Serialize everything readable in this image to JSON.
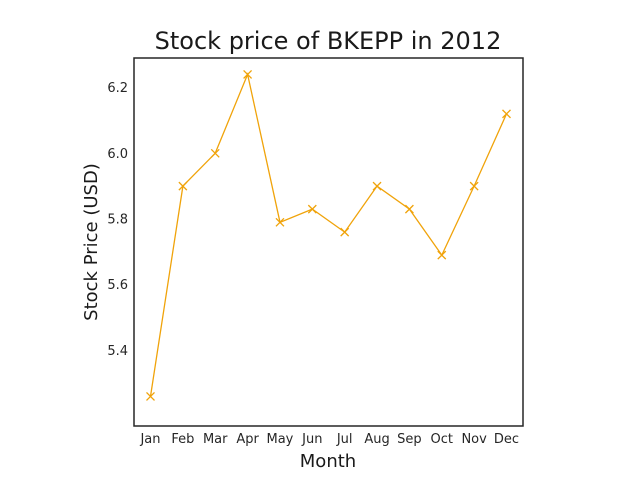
{
  "chart_data": {
    "type": "line",
    "title": "Stock price of BKEPP in 2012",
    "xlabel": "Month",
    "ylabel": "Stock Price (USD)",
    "categories": [
      "Jan",
      "Feb",
      "Mar",
      "Apr",
      "May",
      "Jun",
      "Jul",
      "Aug",
      "Sep",
      "Oct",
      "Nov",
      "Dec"
    ],
    "series": [
      {
        "values": [
          5.26,
          5.9,
          6.0,
          6.24,
          5.79,
          5.83,
          5.76,
          5.9,
          5.83,
          5.69,
          5.9,
          6.12
        ],
        "color": "#f0a30a",
        "marker": "x"
      }
    ],
    "ylim": [
      5.17,
      6.29
    ],
    "yticks": [
      "5.4",
      "5.6",
      "5.8",
      "6.0",
      "6.2"
    ],
    "grid": false,
    "legend": "none"
  }
}
